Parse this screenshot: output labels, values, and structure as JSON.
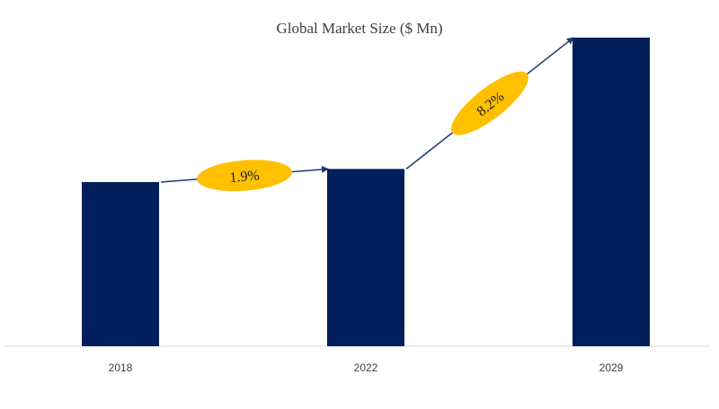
{
  "chart_data": {
    "type": "bar",
    "title": "Global Market Size ($ Mn)",
    "categories": [
      "2018",
      "2022",
      "2029"
    ],
    "series": [
      {
        "values": [
          150,
          162,
          282
        ]
      }
    ],
    "ylim": [
      0,
      300
    ],
    "grid": false,
    "annotations": [
      {
        "label": "1.9%",
        "from": "2018",
        "to": "2022"
      },
      {
        "label": "8.2%",
        "from": "2022",
        "to": "2029"
      }
    ],
    "colors": {
      "bar": "#001f5c",
      "ellipse": "#ffc000",
      "arrow": "#1f3a73",
      "axis": "#d9d9d9"
    }
  }
}
